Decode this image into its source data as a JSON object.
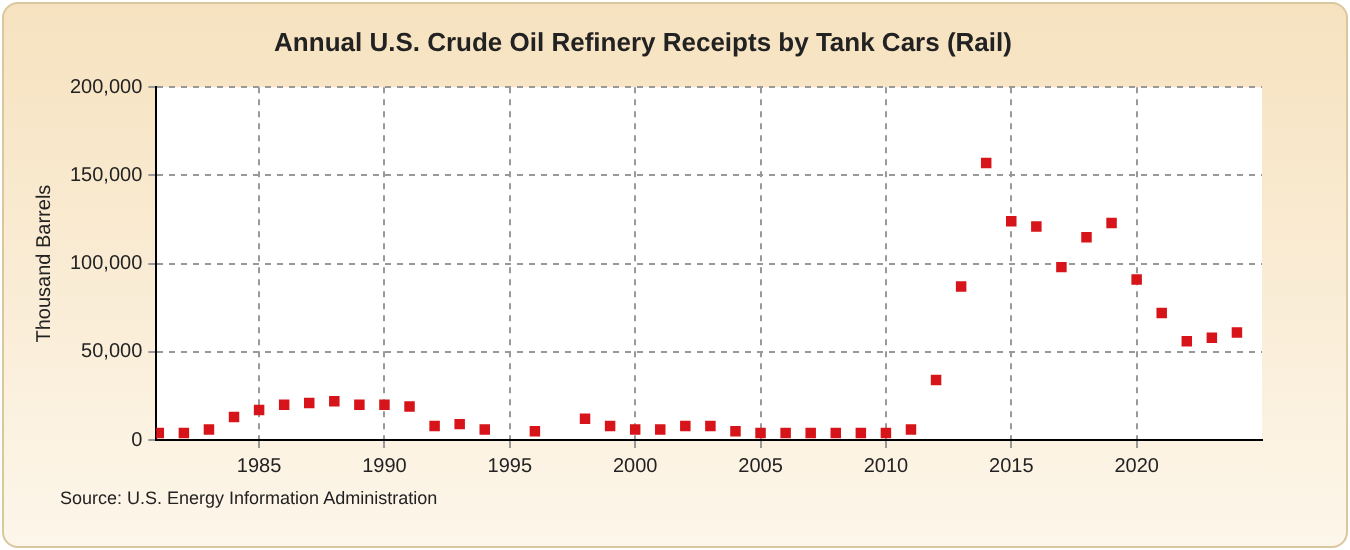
{
  "chart_data": {
    "type": "scatter",
    "title": "Annual U.S. Crude Oil Refinery Receipts by Tank Cars (Rail)",
    "ylabel": "Thousand Barrels",
    "x": [
      1981,
      1982,
      1983,
      1984,
      1985,
      1986,
      1987,
      1988,
      1989,
      1990,
      1991,
      1992,
      1993,
      1994,
      1995,
      1996,
      1997,
      1998,
      1999,
      2000,
      2001,
      2002,
      2003,
      2004,
      2005,
      2006,
      2007,
      2008,
      2009,
      2010,
      2011,
      2012,
      2013,
      2014,
      2015,
      2016,
      2017,
      2018,
      2019,
      2020,
      2021,
      2022,
      2023,
      2024
    ],
    "series": [
      {
        "color": "#d7141a",
        "values": [
          4000,
          4000,
          6000,
          13000,
          17000,
          20000,
          21000,
          22000,
          20000,
          20000,
          19000,
          8000,
          9000,
          6000,
          null,
          5000,
          null,
          12000,
          8000,
          6000,
          6000,
          8000,
          8000,
          5000,
          4000,
          4000,
          4000,
          4000,
          4000,
          4000,
          6000,
          34000,
          87000,
          157000,
          124000,
          121000,
          98000,
          115000,
          123000,
          91000,
          72000,
          56000,
          58000,
          61000
        ]
      }
    ],
    "xlim": [
      1980.9,
      2025
    ],
    "xticks": [
      1985,
      1990,
      1995,
      2000,
      2005,
      2010,
      2015,
      2020
    ],
    "ylim": [
      0,
      200000
    ],
    "yticks": [
      0,
      {
        "value": 50000,
        "label": "50,000"
      },
      {
        "value": 100000,
        "label": "100,000"
      },
      {
        "value": 150000,
        "label": "150,000"
      },
      {
        "value": 200000,
        "label": "200,000"
      }
    ],
    "grid": true,
    "marker": "square",
    "annotations": [
      "Source: U.S. Energy Information Administration"
    ]
  }
}
